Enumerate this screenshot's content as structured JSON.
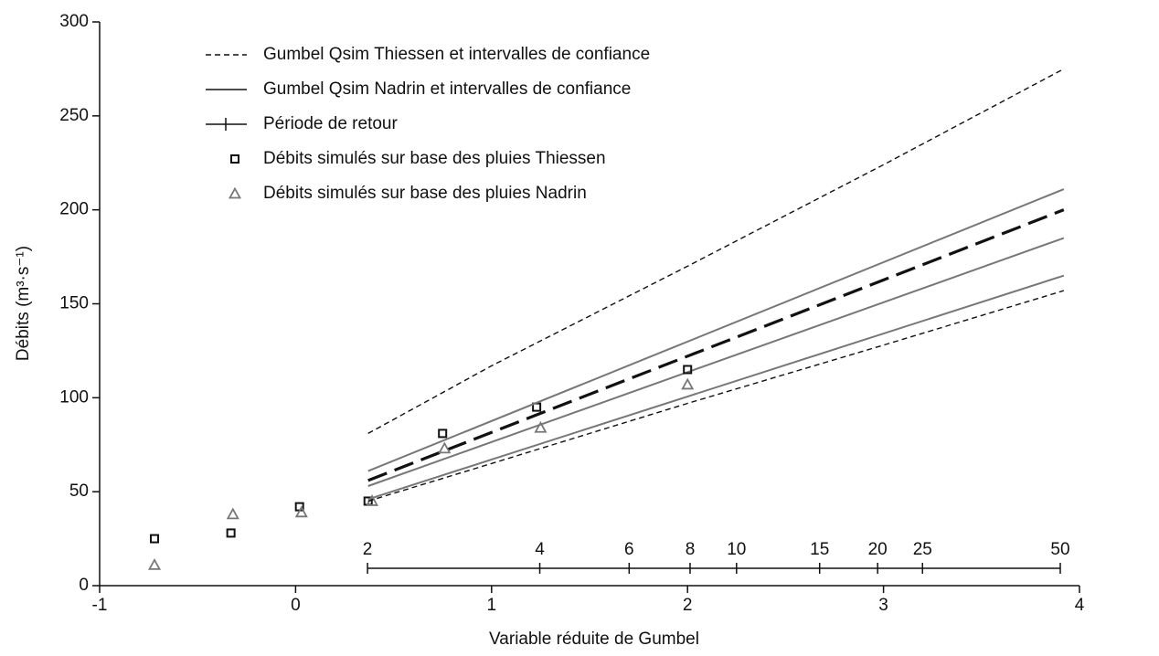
{
  "chart_data": {
    "type": "line",
    "xlabel": "Variable réduite de Gumbel",
    "ylabel": "Débits (m³·s⁻¹)",
    "xlim": [
      -1,
      4
    ],
    "xticks": [
      -1,
      0,
      1,
      2,
      3,
      4
    ],
    "ylim": [
      0,
      300
    ],
    "yticks": [
      0,
      50,
      100,
      150,
      200,
      250,
      300
    ],
    "series": [
      {
        "name": "Gumbel Qsim Thiessen et intervalles de confiance",
        "style": "long-dashed",
        "color": "#111111",
        "x": [
          0.37,
          3.92
        ],
        "values": [
          56,
          200
        ]
      },
      {
        "name": "Gumbel Qsim Nadrin et intervalles de confiance",
        "style": "solid",
        "color": "#777777",
        "x": [
          0.37,
          3.92
        ],
        "values": [
          53,
          185
        ]
      },
      {
        "name": "Période de retour",
        "style": "return-period",
        "color": "#111111",
        "x": [
          0.367,
          1.246,
          1.702,
          2.013,
          2.25,
          2.674,
          2.97,
          3.199,
          3.902
        ],
        "labels": [
          "2",
          "4",
          "6",
          "8",
          "10",
          "15",
          "20",
          "25",
          "50"
        ]
      },
      {
        "name": "Débits simulés sur base des pluies Thiessen",
        "style": "markers",
        "marker": "square",
        "color": "#111111",
        "x": [
          -0.72,
          -0.33,
          0.02,
          0.37,
          0.75,
          1.23,
          2.0
        ],
        "values": [
          25,
          28,
          42,
          45,
          81,
          95,
          115
        ]
      },
      {
        "name": "Débits simulés sur base des pluies Nadrin",
        "style": "markers",
        "marker": "triangle",
        "color": "#777777",
        "x": [
          -0.72,
          -0.32,
          0.03,
          0.39,
          0.76,
          1.25,
          2.0
        ],
        "values": [
          11,
          38,
          39,
          45,
          73,
          84,
          107
        ]
      },
      {
        "style": "dashed",
        "color": "#111111",
        "x": [
          0.37,
          1,
          2,
          3,
          3.92
        ],
        "values": [
          81,
          117,
          170,
          224,
          275
        ]
      },
      {
        "style": "dashed",
        "color": "#111111",
        "x": [
          0.37,
          1,
          2,
          3,
          3.92
        ],
        "values": [
          45,
          65,
          97,
          128,
          157
        ]
      },
      {
        "style": "solid",
        "color": "#777777",
        "x": [
          0.37,
          3.92
        ],
        "values": [
          61,
          211
        ]
      },
      {
        "style": "solid",
        "color": "#777777",
        "x": [
          0.37,
          3.92
        ],
        "values": [
          46,
          165
        ]
      }
    ]
  }
}
